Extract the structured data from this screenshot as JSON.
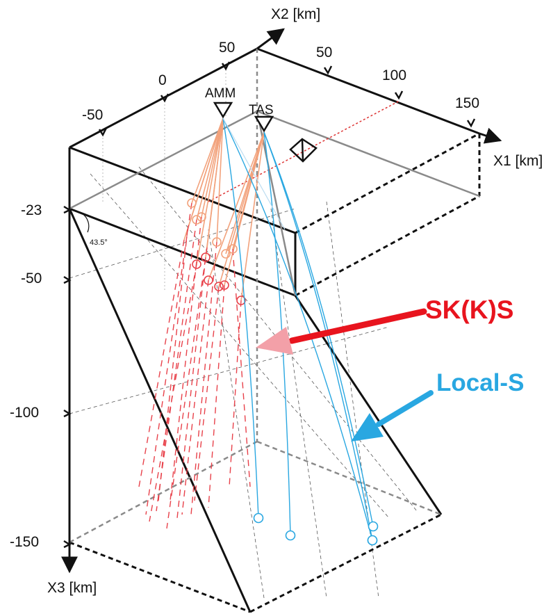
{
  "axes": {
    "x1_title": "X1 [km]",
    "x2_title": "X2 [km]",
    "x3_title": "X3 [km]",
    "x1_ticks": [
      "50",
      "100",
      "150"
    ],
    "x2_ticks": [
      "-50",
      "0",
      "50"
    ],
    "x3_ticks": [
      "-23",
      "-50",
      "-100",
      "-150"
    ]
  },
  "stations": [
    {
      "name": "AMM"
    },
    {
      "name": "TAS"
    }
  ],
  "dip_angle_label": "43.5°",
  "legend": {
    "sks_label": "SK(K)S",
    "local_label": "Local-S",
    "sks_color": "#e8141e",
    "local_color": "#29a7e1"
  },
  "colors": {
    "sks_ray_surface": "#f2a27c",
    "sks_ray_deep": "#e8414a",
    "sks_arrow_tip": "#f3a0a8",
    "local_ray": "#29a7e1",
    "local_ray_light": "#bcdcf0",
    "outline": "#111111",
    "grey_edge": "#8a8a8a"
  },
  "icons": [
    "station-triangle-icon",
    "event-diamond-icon",
    "sks-arrow-icon",
    "local-s-arrow-icon"
  ]
}
